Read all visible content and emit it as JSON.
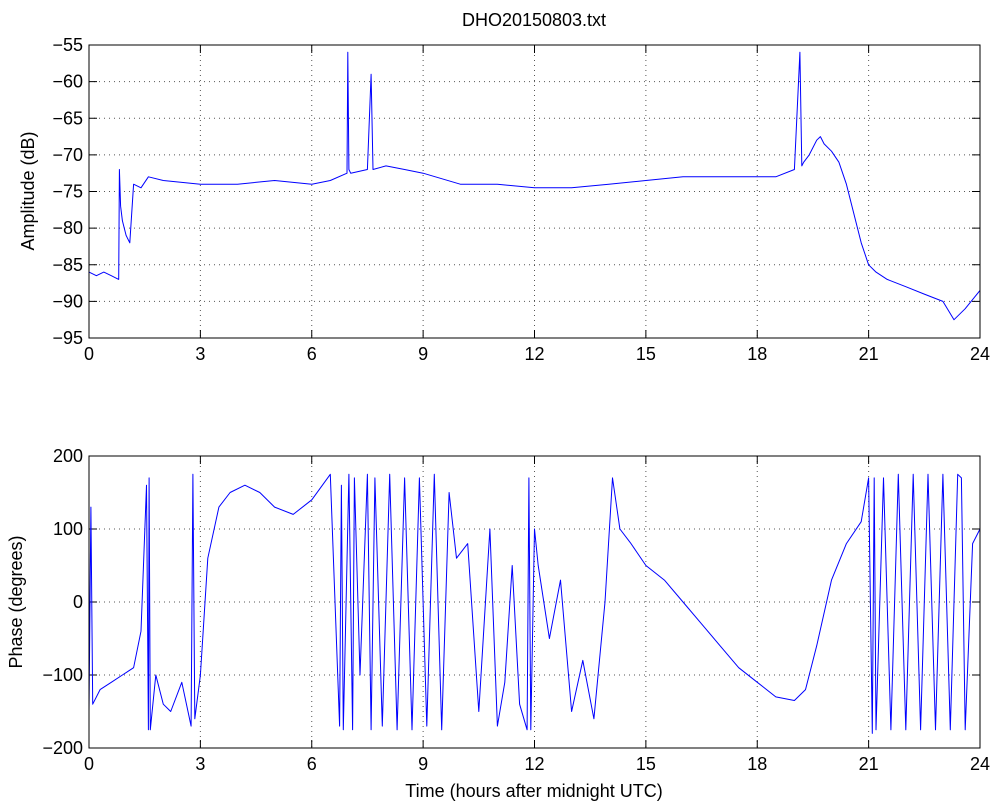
{
  "chart_data": [
    {
      "type": "line",
      "title": "DHO20150803.txt",
      "xlabel": "",
      "ylabel": "Amplitude (dB)",
      "xlim": [
        0,
        24
      ],
      "ylim": [
        -95,
        -55
      ],
      "xticks": [
        "0",
        "3",
        "6",
        "9",
        "12",
        "15",
        "18",
        "21",
        "24"
      ],
      "yticks": [
        "−55",
        "−60",
        "−65",
        "−70",
        "−75",
        "−80",
        "−85",
        "−90",
        "−95"
      ],
      "grid": true,
      "color": "#0000ff",
      "series": [
        {
          "x": [
            0,
            0.2,
            0.4,
            0.6,
            0.8,
            0.82,
            0.85,
            0.9,
            1.0,
            1.1,
            1.2,
            1.4,
            1.6,
            2,
            3,
            4,
            5,
            6,
            6.5,
            6.95,
            6.97,
            7.0,
            7.05,
            7.5,
            7.6,
            7.65,
            8,
            8.5,
            9,
            10,
            11,
            12,
            13,
            14,
            15,
            16,
            17,
            18,
            18.5,
            19.0,
            19.15,
            19.2,
            19.25,
            19.4,
            19.6,
            19.7,
            19.8,
            20.0,
            20.2,
            20.4,
            20.6,
            20.8,
            21.0,
            21.2,
            21.5,
            22,
            22.5,
            23,
            23.3,
            23.6,
            24
          ],
          "values": [
            -86,
            -86.5,
            -86,
            -86.5,
            -87,
            -72,
            -77,
            -79,
            -81,
            -82,
            -74,
            -74.5,
            -73,
            -73.5,
            -74,
            -74,
            -73.5,
            -74,
            -73.5,
            -72.5,
            -56,
            -72,
            -72.5,
            -72,
            -59,
            -72,
            -71.5,
            -72,
            -72.5,
            -74,
            -74,
            -74.5,
            -74.5,
            -74,
            -73.5,
            -73,
            -73,
            -73,
            -73,
            -72,
            -56,
            -71.5,
            -71,
            -70,
            -68,
            -67.5,
            -68.5,
            -69.5,
            -71,
            -74,
            -78,
            -82,
            -85,
            -86,
            -87,
            -88,
            -89,
            -90,
            -92.5,
            -91,
            -88.5
          ]
        }
      ]
    },
    {
      "type": "line",
      "title": "",
      "xlabel": "Time (hours after midnight UTC)",
      "ylabel": "Phase (degrees)",
      "xlim": [
        0,
        24
      ],
      "ylim": [
        -200,
        200
      ],
      "xticks": [
        "0",
        "3",
        "6",
        "9",
        "12",
        "15",
        "18",
        "21",
        "24"
      ],
      "yticks": [
        "200",
        "100",
        "0",
        "−100",
        "−200"
      ],
      "grid": true,
      "color": "#0000ff",
      "series": [
        {
          "x": [
            0,
            0.05,
            0.1,
            0.3,
            0.6,
            0.9,
            1.2,
            1.4,
            1.55,
            1.6,
            1.62,
            1.65,
            1.8,
            2.0,
            2.2,
            2.5,
            2.75,
            2.8,
            2.85,
            3.0,
            3.2,
            3.5,
            3.8,
            4.2,
            4.6,
            5.0,
            5.5,
            6.0,
            6.5,
            6.75,
            6.8,
            6.85,
            7.0,
            7.1,
            7.15,
            7.3,
            7.5,
            7.6,
            7.7,
            7.9,
            8.1,
            8.3,
            8.5,
            8.7,
            8.9,
            9.1,
            9.3,
            9.5,
            9.7,
            9.9,
            10.2,
            10.5,
            10.8,
            11.0,
            11.2,
            11.4,
            11.6,
            11.8,
            11.85,
            11.9,
            12.0,
            12.1,
            12.4,
            12.7,
            13.0,
            13.3,
            13.6,
            13.9,
            14.1,
            14.3,
            14.6,
            15.0,
            15.5,
            16.0,
            16.5,
            17.0,
            17.5,
            18.0,
            18.5,
            19.0,
            19.3,
            19.6,
            20.0,
            20.4,
            20.8,
            21.0,
            21.1,
            21.15,
            21.2,
            21.4,
            21.6,
            21.8,
            22.0,
            22.2,
            22.4,
            22.6,
            22.8,
            23.0,
            23.2,
            23.4,
            23.5,
            23.6,
            23.8,
            24.0
          ],
          "values": [
            -150,
            130,
            -140,
            -120,
            -110,
            -100,
            -90,
            -40,
            160,
            -175,
            170,
            -175,
            -100,
            -140,
            -150,
            -110,
            -170,
            175,
            -160,
            -100,
            60,
            130,
            150,
            160,
            150,
            130,
            120,
            140,
            175,
            -170,
            160,
            -175,
            175,
            -175,
            170,
            -100,
            175,
            -175,
            170,
            -170,
            175,
            -175,
            170,
            -175,
            170,
            -170,
            175,
            -175,
            150,
            60,
            80,
            -150,
            100,
            -170,
            -110,
            50,
            -140,
            -175,
            170,
            -175,
            100,
            50,
            -50,
            30,
            -150,
            -80,
            -160,
            0,
            170,
            100,
            80,
            50,
            30,
            0,
            -30,
            -60,
            -90,
            -110,
            -130,
            -135,
            -120,
            -60,
            30,
            80,
            110,
            170,
            -180,
            170,
            -175,
            170,
            -175,
            175,
            -175,
            175,
            -175,
            175,
            -175,
            175,
            -175,
            175,
            170,
            -175,
            80,
            100
          ]
        }
      ]
    }
  ]
}
